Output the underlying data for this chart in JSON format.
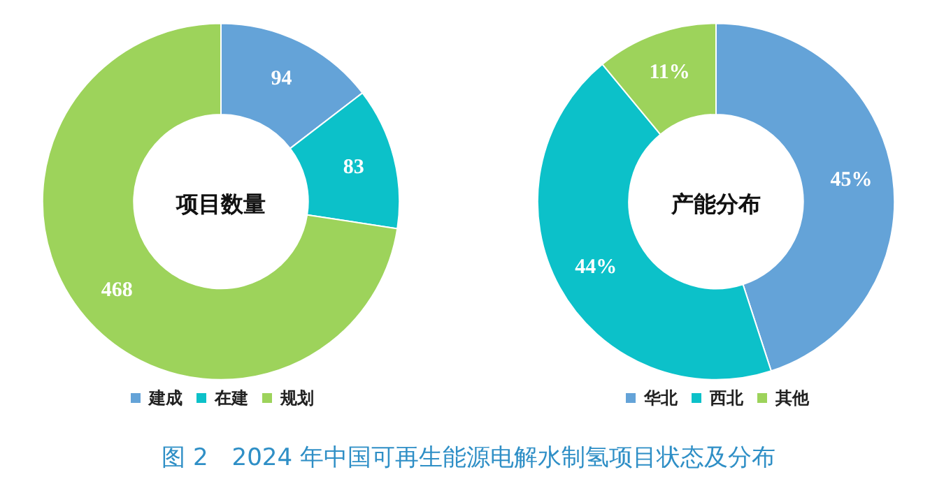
{
  "chart_data": [
    {
      "type": "donut",
      "title": "项目数量",
      "categories": [
        "建成",
        "在建",
        "规划"
      ],
      "values": [
        94,
        83,
        468
      ],
      "colors": [
        "#64a3d8",
        "#0cc1c9",
        "#9dd35b"
      ],
      "data_labels": true,
      "legend": "bottom",
      "annotations": [
        "图 2　2024 年中国可再生能源电解水制氢项目状态及分布"
      ]
    },
    {
      "type": "donut",
      "title": "产能分布",
      "categories": [
        "华北",
        "西北",
        "其他"
      ],
      "values": [
        45,
        44,
        11
      ],
      "colors": [
        "#64a3d8",
        "#0cc1c9",
        "#9dd35b"
      ],
      "value_labels": [
        "45%",
        "44%",
        "11%"
      ],
      "legend": "bottom"
    }
  ]
}
